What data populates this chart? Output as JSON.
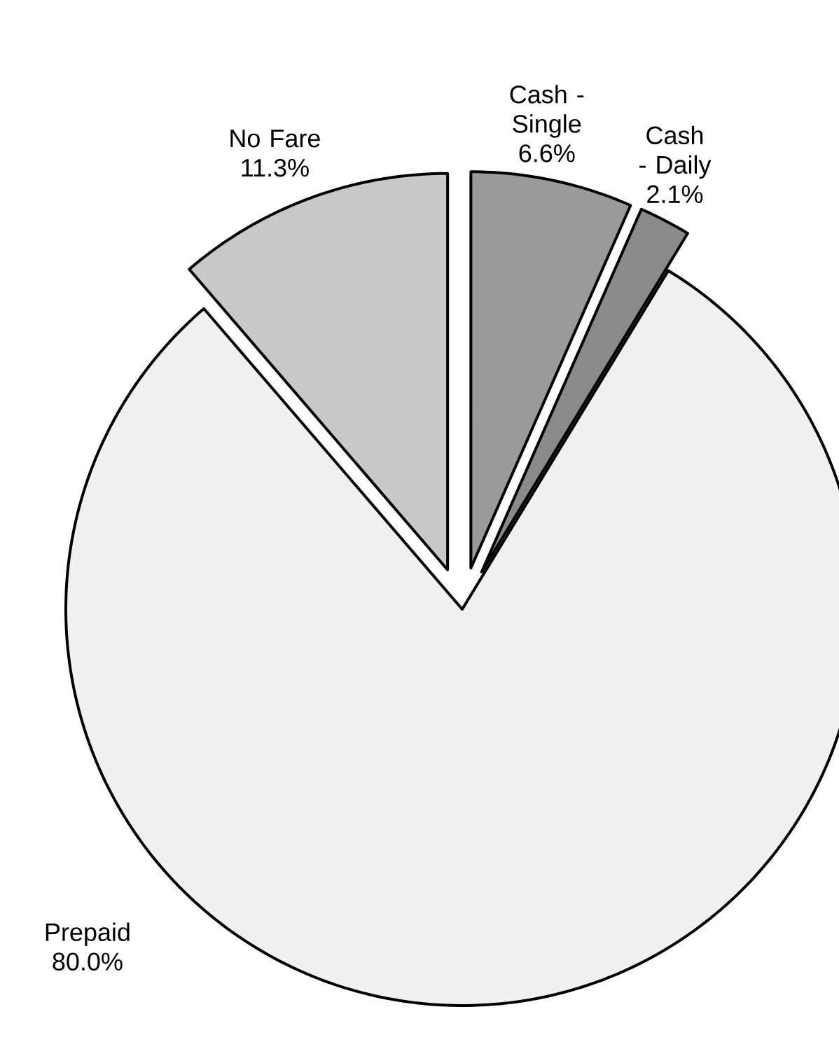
{
  "chart_data": {
    "type": "pie",
    "categories": [
      "Cash - Single",
      "Cash - Daily",
      "Prepaid",
      "No Fare"
    ],
    "values": [
      6.6,
      2.1,
      80.0,
      11.3
    ],
    "value_labels": [
      "6.6%",
      "2.1%",
      "80.0%",
      "11.3%"
    ],
    "colors": [
      "#9a9a9a",
      "#8a8a8a",
      "#f0f0f0",
      "#c8c8c8"
    ]
  }
}
